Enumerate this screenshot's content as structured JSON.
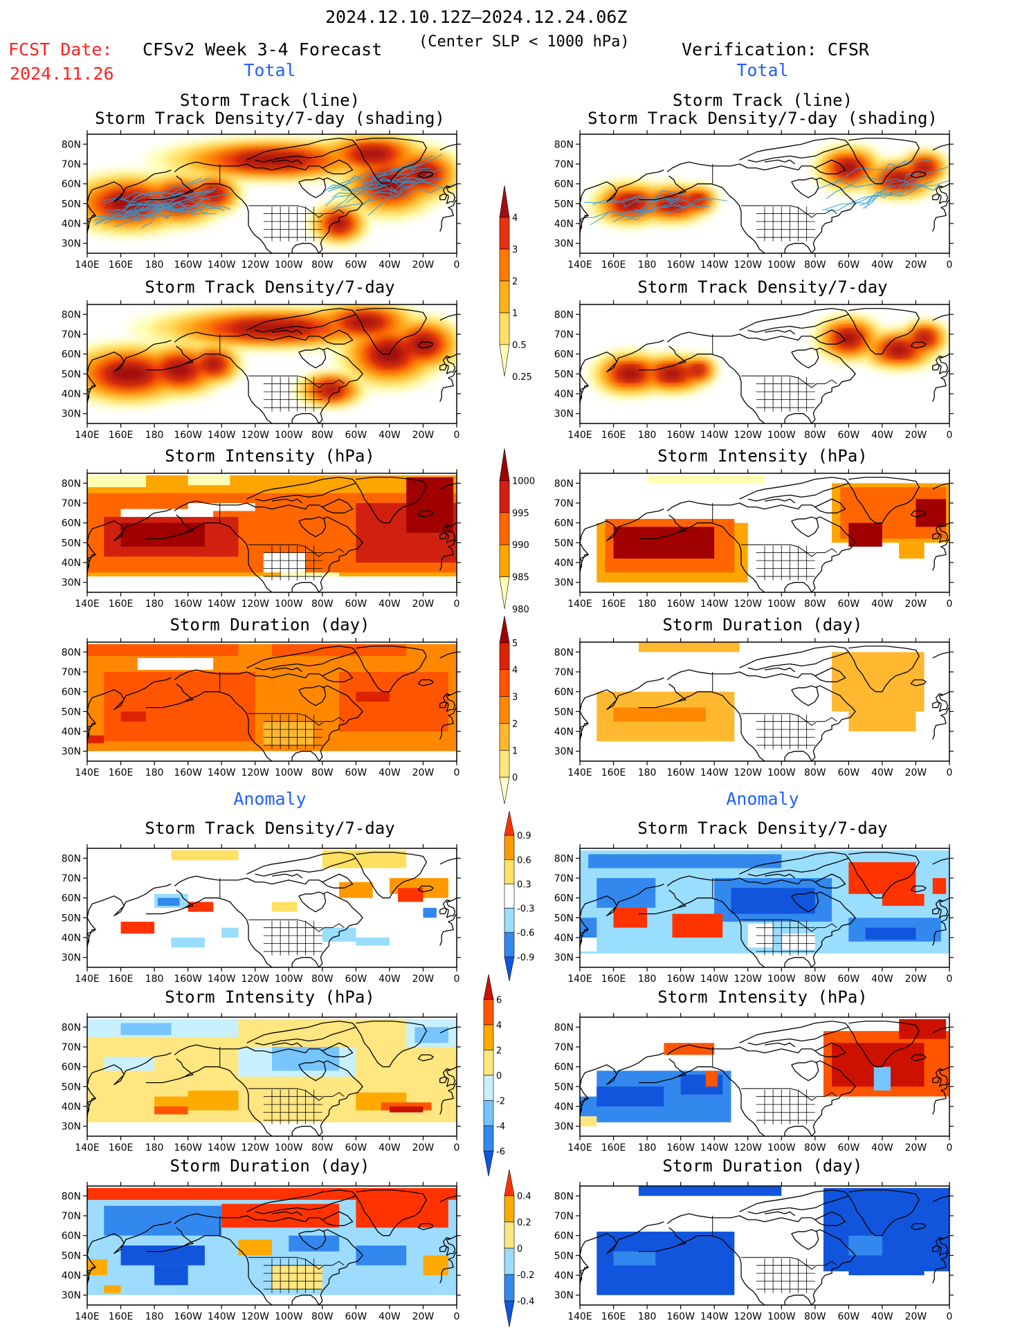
{
  "header": {
    "period": "2024.12.10.12Z–2024.12.24.06Z",
    "fcst_label": "FCST Date:",
    "fcst_date": "2024.11.26",
    "model": "CFSv2 Week 3-4 Forecast",
    "criterion": "(Center SLP < 1000 hPa)",
    "verification": "Verification: CFSR"
  },
  "sections": {
    "total": "Total",
    "anomaly": "Anomaly"
  },
  "titles": {
    "track_line": "Storm Track (line)",
    "track_shading": "Storm Track Density/7-day (shading)",
    "density": "Storm Track Density/7-day",
    "intensity": "Storm Intensity (hPa)",
    "duration": "Storm Duration (day)"
  },
  "axes": {
    "lat_labels": [
      "80N",
      "70N",
      "60N",
      "50N",
      "40N",
      "30N"
    ],
    "lon_labels": [
      "140E",
      "160E",
      "180",
      "160W",
      "140W",
      "120W",
      "100W",
      "80W",
      "60W",
      "40W",
      "20W",
      "0"
    ]
  },
  "colorbars": {
    "density_total": {
      "labels": [
        "4",
        "3",
        "2",
        "1",
        "0.5",
        "0.25"
      ],
      "colors": [
        "#ffffb3",
        "#ffe066",
        "#ffb01f",
        "#ff7a00",
        "#e83010",
        "#a01010"
      ]
    },
    "intensity_total": {
      "labels": [
        "1000",
        "995",
        "990",
        "985",
        "980"
      ],
      "colors": [
        "#ffffb3",
        "#ffa500",
        "#ff6600",
        "#d02010",
        "#a00000"
      ]
    },
    "duration_total": {
      "labels": [
        "5",
        "4",
        "3",
        "2",
        "1",
        "0"
      ],
      "colors": [
        "#ffffc8",
        "#ffe480",
        "#ffb830",
        "#ff8800",
        "#ff5500",
        "#dd2200",
        "#a00000"
      ]
    },
    "density_anom": {
      "labels": [
        "0.9",
        "0.6",
        "0.3",
        "-0.3",
        "-0.6",
        "-0.9"
      ],
      "colors": [
        "#1155dd",
        "#3388ee",
        "#99ddff",
        "#ffffff",
        "#ffe060",
        "#ff9900",
        "#ff3300"
      ]
    },
    "intensity_anom": {
      "labels": [
        "6",
        "4",
        "2",
        "0",
        "-2",
        "-4",
        "-6"
      ],
      "colors": [
        "#1155dd",
        "#3388ee",
        "#77c4ff",
        "#c8f0ff",
        "#ffe680",
        "#ffaa00",
        "#ff5500",
        "#cc1100"
      ]
    },
    "duration_anom": {
      "labels": [
        "0.4",
        "0.2",
        "0",
        "-0.2",
        "-0.4"
      ],
      "colors": [
        "#1155dd",
        "#3388ee",
        "#9ddcff",
        "#ffe680",
        "#ffaa00",
        "#ff3300"
      ]
    }
  },
  "colors": {
    "track_line": "#2b9ee0",
    "land": "#000000"
  }
}
